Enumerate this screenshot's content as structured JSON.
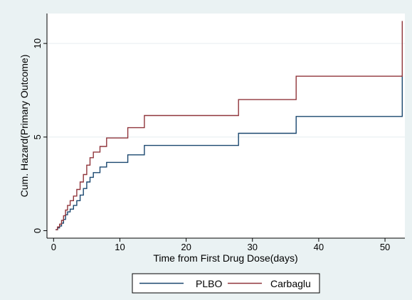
{
  "chart_data": {
    "type": "line",
    "step": true,
    "xlabel": "Time from First Drug Dose(days)",
    "ylabel": "Cum. Hazard(Primary Outcome)",
    "xlim": [
      -1,
      53
    ],
    "ylim": [
      -0.4,
      11.6
    ],
    "xticks": [
      0,
      10,
      20,
      30,
      40,
      50
    ],
    "yticks": [
      0,
      5,
      10
    ],
    "grid": true,
    "legend": "bottom",
    "colors": {
      "background": "#eaf2f3",
      "plot_area": "#ffffff",
      "grid": "#e6eef0"
    },
    "series": [
      {
        "name": "PLBO",
        "color": "#1a476f",
        "points": [
          [
            0.3,
            0.05
          ],
          [
            0.6,
            0.15
          ],
          [
            0.9,
            0.25
          ],
          [
            1.2,
            0.4
          ],
          [
            1.5,
            0.6
          ],
          [
            1.8,
            0.85
          ],
          [
            2.1,
            1.0
          ],
          [
            2.5,
            1.15
          ],
          [
            3.0,
            1.35
          ],
          [
            3.5,
            1.6
          ],
          [
            4.0,
            1.9
          ],
          [
            4.5,
            2.25
          ],
          [
            5.0,
            2.6
          ],
          [
            5.5,
            2.85
          ],
          [
            6.0,
            3.1
          ],
          [
            7.0,
            3.4
          ],
          [
            8.0,
            3.65
          ],
          [
            11.2,
            4.05
          ],
          [
            13.7,
            4.55
          ],
          [
            27.9,
            5.2
          ],
          [
            36.6,
            6.1
          ],
          [
            52.6,
            8.3
          ]
        ]
      },
      {
        "name": "Carbaglu",
        "color": "#90353b",
        "points": [
          [
            0.3,
            0.05
          ],
          [
            0.6,
            0.2
          ],
          [
            0.9,
            0.35
          ],
          [
            1.2,
            0.55
          ],
          [
            1.5,
            0.8
          ],
          [
            1.8,
            1.1
          ],
          [
            2.1,
            1.35
          ],
          [
            2.5,
            1.6
          ],
          [
            3.0,
            1.85
          ],
          [
            3.5,
            2.2
          ],
          [
            4.0,
            2.6
          ],
          [
            4.5,
            3.0
          ],
          [
            5.0,
            3.5
          ],
          [
            5.5,
            3.9
          ],
          [
            6.0,
            4.2
          ],
          [
            7.0,
            4.5
          ],
          [
            8.0,
            4.95
          ],
          [
            11.2,
            5.5
          ],
          [
            13.7,
            6.15
          ],
          [
            27.9,
            7.0
          ],
          [
            36.6,
            8.25
          ],
          [
            52.6,
            11.2
          ]
        ]
      }
    ]
  }
}
